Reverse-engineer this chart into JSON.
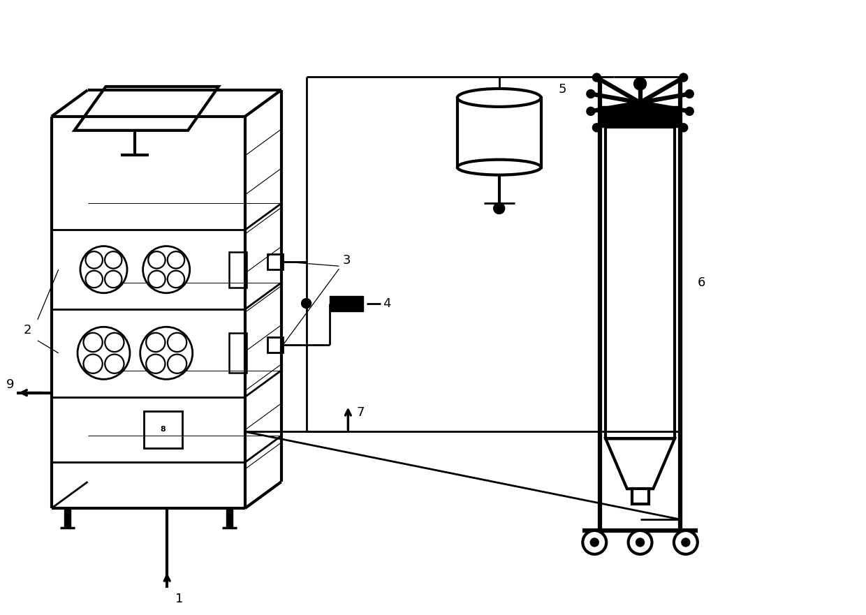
{
  "bg_color": "#ffffff",
  "line_color": "#000000",
  "lw": 2.0,
  "lw_thick": 3.0,
  "fig_width": 12.4,
  "fig_height": 8.81
}
